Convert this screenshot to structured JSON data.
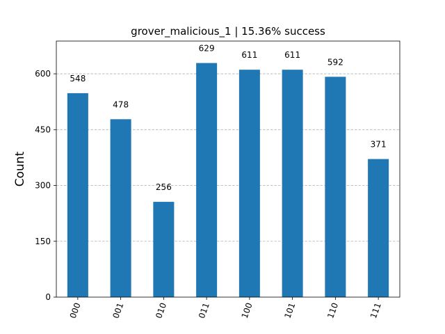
{
  "chart_data": {
    "type": "bar",
    "title": "grover_malicious_1 | 15.36% success",
    "xlabel": "",
    "ylabel": "Count",
    "categories": [
      "000",
      "001",
      "010",
      "011",
      "100",
      "101",
      "110",
      "111"
    ],
    "values": [
      548,
      478,
      256,
      629,
      611,
      611,
      592,
      371
    ],
    "data_labels": [
      "548",
      "478",
      "256",
      "629",
      "611",
      "611",
      "592",
      "371"
    ],
    "ylim": [
      0,
      688
    ],
    "yticks": [
      0,
      150,
      300,
      450,
      600
    ],
    "ytick_labels": [
      "0",
      "150",
      "300",
      "450",
      "600"
    ],
    "grid": "y-dashed",
    "legend": "none",
    "bar_color": "#1f77b4",
    "x_tick_rotation": "70 degrees"
  }
}
